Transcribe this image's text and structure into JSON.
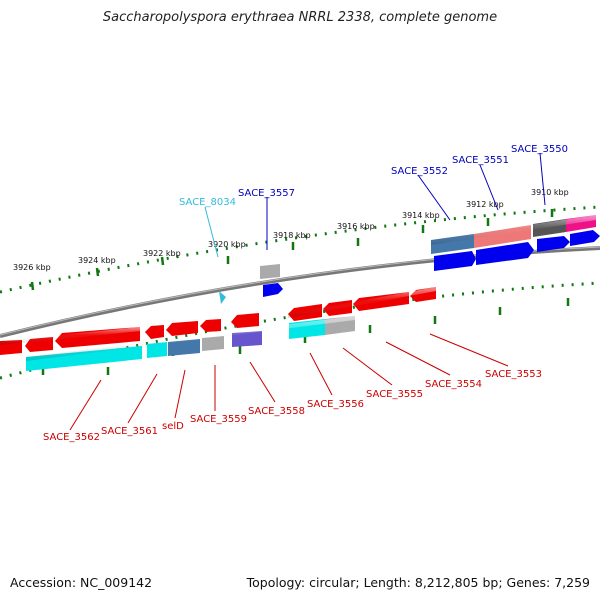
{
  "title": "Saccharopolyspora erythraea NRRL 2338, complete genome",
  "footer": {
    "accession": "Accession: NC_009142",
    "summary": "Topology: circular; Length: 8,212,805 bp; Genes: 7,259"
  },
  "ruler_labels": [
    "3926 kbp",
    "3924 kbp",
    "3922 kbp",
    "3920 kbp",
    "3918 kbp",
    "3916 kbp",
    "3914 kbp",
    "3912 kbp",
    "3910 kbp"
  ],
  "top_labels": [
    {
      "text": "SACE_8034",
      "color": "#33bbdd"
    },
    {
      "text": "SACE_3557",
      "color": "#0000bb"
    },
    {
      "text": "SACE_3552",
      "color": "#0000bb"
    },
    {
      "text": "SACE_3551",
      "color": "#0000bb"
    },
    {
      "text": "SACE_3550",
      "color": "#0000bb"
    }
  ],
  "bottom_labels": [
    {
      "text": "SACE_3562",
      "color": "#cc0000"
    },
    {
      "text": "SACE_3561",
      "color": "#cc0000"
    },
    {
      "text": "selD",
      "color": "#cc0000"
    },
    {
      "text": "SACE_3559",
      "color": "#cc0000"
    },
    {
      "text": "SACE_3558",
      "color": "#cc0000"
    },
    {
      "text": "SACE_3556",
      "color": "#cc0000"
    },
    {
      "text": "SACE_3555",
      "color": "#cc0000"
    },
    {
      "text": "SACE_3554",
      "color": "#cc0000"
    },
    {
      "text": "SACE_3553",
      "color": "#cc0000"
    }
  ],
  "colors": {
    "forward_cds": "#0000ee",
    "reverse_cds": "#ee0000",
    "cyan_track": "#00e5e5",
    "gray_track": "#aaaaaa",
    "steel_track": "#4477aa",
    "pink_track": "#ee7777",
    "dark_gray_track": "#555555",
    "magenta_track": "#ee1188",
    "purple_track": "#6655cc",
    "ruler_green": "#117711",
    "backbone": "#777777"
  }
}
